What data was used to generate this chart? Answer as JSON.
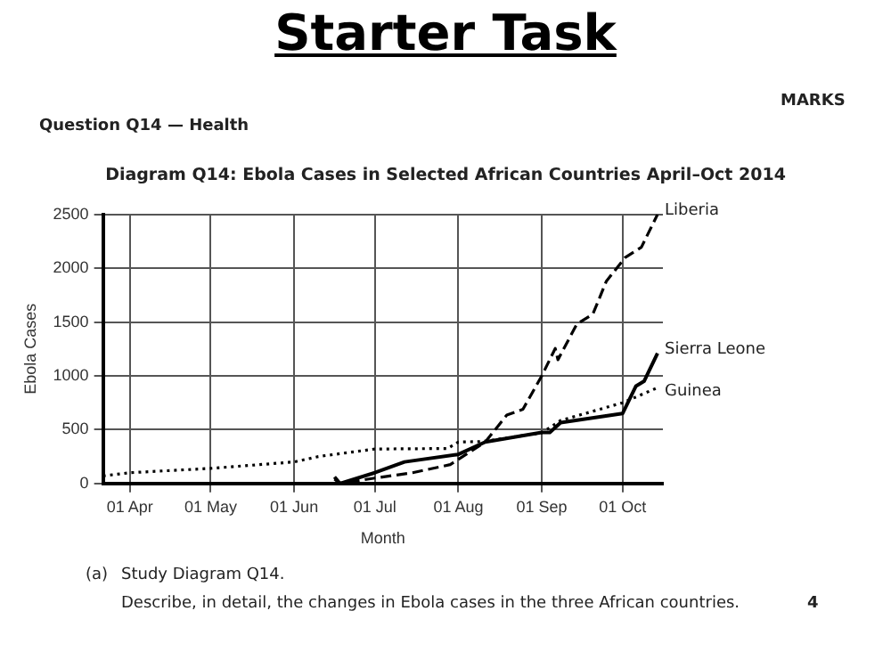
{
  "chart_data": {
    "type": "line",
    "title": "Starter Task",
    "subtitle": "Diagram Q14: Ebola Cases in Selected African Countries April–Oct 2014",
    "xlabel": "Month",
    "ylabel": "Ebola Cases",
    "annotations": [
      "MARKS",
      "Question Q14 — Health",
      "(a)",
      "Study Diagram Q14.",
      "Describe, in detail, the changes in Ebola cases in the three African countries.",
      "4"
    ],
    "series": [
      {
        "name": "Liberia",
        "color": "#000000",
        "line_style": "dashed",
        "x": [
          "2014-06-16",
          "2014-06-18",
          "2014-07-01",
          "2014-07-15",
          "2014-07-29",
          "2014-08-11",
          "2014-08-19",
          "2014-08-25",
          "2014-09-01",
          "2014-09-06",
          "2014-09-07",
          "2014-09-14",
          "2014-09-20",
          "2014-09-25",
          "2014-10-02",
          "2014-10-08",
          "2014-10-14"
        ],
        "values": [
          40,
          0,
          50,
          100,
          175,
          385,
          635,
          690,
          1000,
          1255,
          1150,
          1480,
          1575,
          1880,
          2100,
          2195,
          2500
        ]
      },
      {
        "name": "Sierra Leone",
        "color": "#000000",
        "line_style": "solid",
        "x": [
          "2014-06-16",
          "2014-06-18",
          "2014-07-01",
          "2014-07-12",
          "2014-08-01",
          "2014-08-11",
          "2014-09-01",
          "2014-09-04",
          "2014-09-08",
          "2014-10-01",
          "2014-10-06",
          "2014-10-09",
          "2014-10-14"
        ],
        "values": [
          60,
          0,
          100,
          200,
          270,
          385,
          475,
          475,
          565,
          650,
          905,
          950,
          1210
        ]
      },
      {
        "name": "Guinea",
        "color": "#000000",
        "line_style": "dotted",
        "x": [
          "2014-03-22",
          "2014-04-01",
          "2014-05-01",
          "2014-06-01",
          "2014-06-10",
          "2014-07-01",
          "2014-07-28",
          "2014-08-01",
          "2014-08-10",
          "2014-09-01",
          "2014-09-08",
          "2014-10-01",
          "2014-10-14"
        ],
        "values": [
          70,
          100,
          140,
          200,
          250,
          320,
          325,
          385,
          390,
          470,
          585,
          750,
          890
        ]
      }
    ],
    "xlim": [
      "2014-03-22",
      "2014-10-16"
    ],
    "xticks": [
      {
        "value": "2014-04-01",
        "label": "01 Apr"
      },
      {
        "value": "2014-05-01",
        "label": "01 May"
      },
      {
        "value": "2014-06-01",
        "label": "01 Jun"
      },
      {
        "value": "2014-07-01",
        "label": "01 Jul"
      },
      {
        "value": "2014-08-01",
        "label": "01 Aug"
      },
      {
        "value": "2014-09-01",
        "label": "01 Sep"
      },
      {
        "value": "2014-10-01",
        "label": "01 Oct"
      }
    ],
    "ylim": [
      0,
      2500
    ],
    "yticks": [
      0,
      500,
      1000,
      1500,
      2000,
      2500
    ],
    "grid": true
  }
}
